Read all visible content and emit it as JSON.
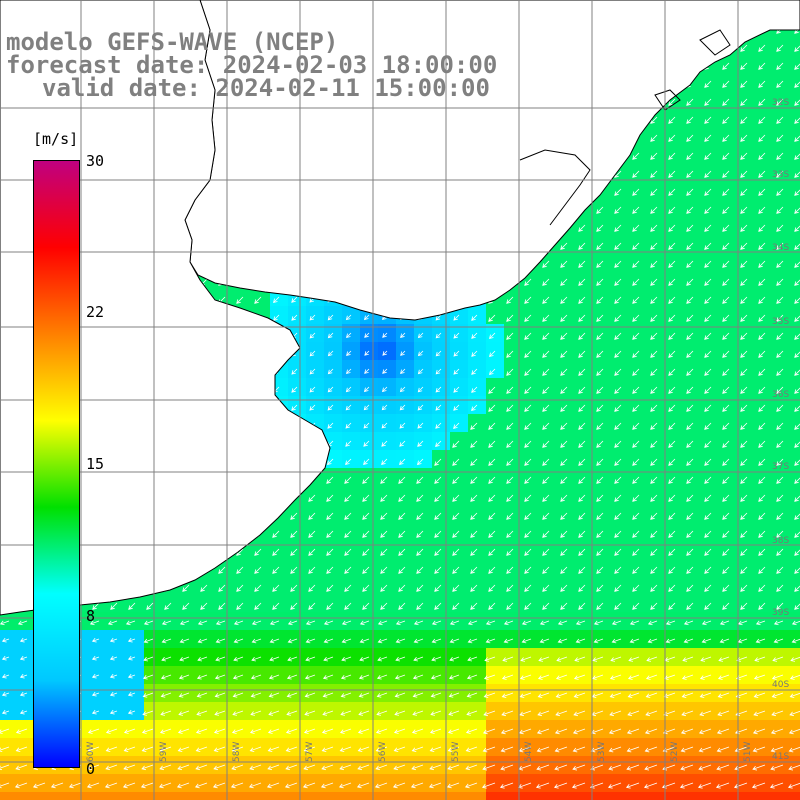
{
  "title": {
    "model": "modelo GEFS-WAVE (NCEP)",
    "forecast": "forecast date: 2024-02-03 18:00:00",
    "valid": "valid date: 2024-02-11 15:00:00"
  },
  "colorbar": {
    "unit": "[m/s]",
    "min": 0,
    "max": 30,
    "ticks": [
      "30",
      "22",
      "15",
      "8",
      "0"
    ],
    "stops": [
      "#0000ff",
      "#00c8ff",
      "#00ffff",
      "#00e000",
      "#ffff00",
      "#ff8000",
      "#ff0000",
      "#c00080"
    ]
  },
  "map": {
    "variable": "wind speed and direction",
    "region": "Rio de la Plata / Uruguay / southern Brazil coast",
    "lat_labels": [
      "32S",
      "33S",
      "34S",
      "35S",
      "36S",
      "37S",
      "38S",
      "39S",
      "40S",
      "41S"
    ],
    "lon_labels": [
      "60W",
      "59W",
      "58W",
      "57W",
      "56W",
      "55W",
      "54W",
      "53W",
      "52W",
      "51W"
    ],
    "land_color": "#ffffff",
    "grid_color": "#808080",
    "arrow_color": "#ffffff"
  }
}
